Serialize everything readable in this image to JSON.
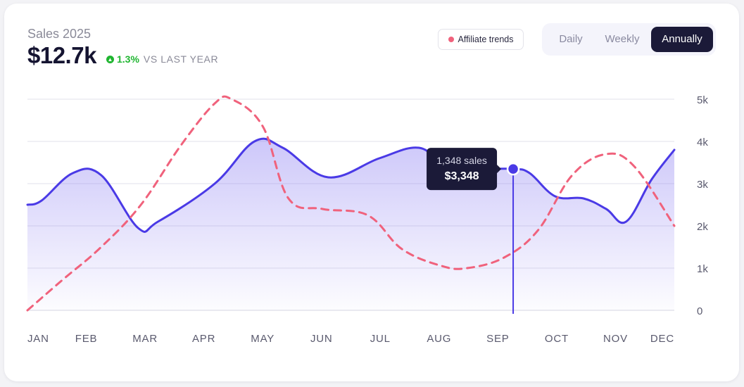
{
  "header": {
    "title": "Sales 2025",
    "total": "$12.7k",
    "delta_value": "1.3%",
    "delta_text": "VS LAST YEAR"
  },
  "legend": {
    "label": "Affiliate trends"
  },
  "range_tabs": [
    {
      "label": "Daily",
      "active": false
    },
    {
      "label": "Weekly",
      "active": false
    },
    {
      "label": "Annually",
      "active": true
    }
  ],
  "tooltip": {
    "line1": "1,348 sales",
    "line2": "$3,348",
    "x": 8.56
  },
  "colors": {
    "sales": "#4a3ae6",
    "affiliate": "#f0627c",
    "dark": "#1b1a38"
  },
  "chart_data": {
    "type": "line",
    "categories": [
      "JAN",
      "FEB",
      "MAR",
      "APR",
      "MAY",
      "JUN",
      "JUL",
      "AUG",
      "SEP",
      "OCT",
      "NOV",
      "DEC"
    ],
    "y_ticks": [
      "0",
      "1k",
      "2k",
      "3k",
      "4k",
      "5k"
    ],
    "ylim": [
      0,
      5000
    ],
    "xlim": [
      0,
      11.4
    ],
    "grid": true,
    "series": [
      {
        "name": "",
        "style": "solid-area",
        "x": [
          0,
          0.25,
          0.8,
          1.3,
          1.95,
          2.3,
          3.3,
          4.0,
          4.5,
          5.3,
          6.2,
          6.9,
          7.4,
          8.0,
          8.56,
          8.85,
          9.3,
          9.8,
          10.2,
          10.55,
          11.0,
          11.4
        ],
        "y": [
          2500,
          2600,
          3250,
          3200,
          1950,
          2100,
          3000,
          4000,
          3850,
          3150,
          3600,
          3850,
          3400,
          3350,
          3348,
          3250,
          2700,
          2650,
          2400,
          2100,
          3100,
          3800
        ]
      },
      {
        "name": "Affiliate trends",
        "style": "dashed",
        "x": [
          0,
          0.6,
          1.3,
          2.0,
          2.7,
          3.3,
          3.6,
          4.15,
          4.6,
          5.2,
          6.0,
          6.6,
          7.3,
          7.75,
          8.4,
          9.0,
          9.6,
          10.2,
          10.7,
          11.4
        ],
        "y": [
          0,
          700,
          1500,
          2500,
          3900,
          4900,
          5000,
          4350,
          2650,
          2400,
          2250,
          1450,
          1050,
          1000,
          1250,
          1900,
          3200,
          3700,
          3400,
          2000
        ]
      }
    ]
  }
}
